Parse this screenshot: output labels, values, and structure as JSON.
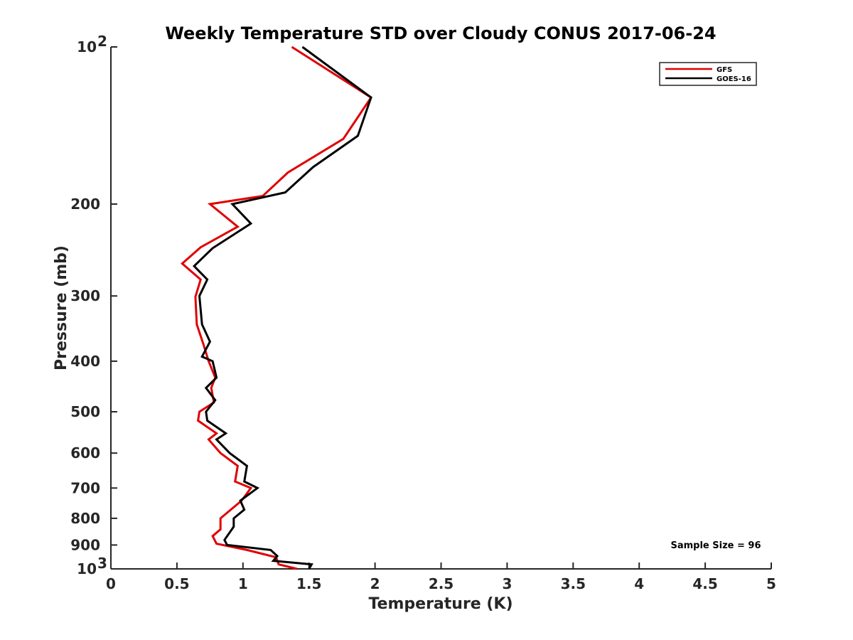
{
  "chart_data": {
    "type": "line",
    "title": "Weekly Temperature STD over Cloudy CONUS 2017-06-24",
    "xlabel": "Temperature (K)",
    "ylabel": "Pressure (mb)",
    "xlim": [
      0,
      5
    ],
    "ylim": [
      100,
      1000
    ],
    "y_scale": "log",
    "y_reversed": true,
    "grid": false,
    "legend_position": "top-right",
    "x_ticks": [
      {
        "value": 0,
        "label": "0"
      },
      {
        "value": 0.5,
        "label": "0.5"
      },
      {
        "value": 1,
        "label": "1"
      },
      {
        "value": 1.5,
        "label": "1.5"
      },
      {
        "value": 2,
        "label": "2"
      },
      {
        "value": 2.5,
        "label": "2.5"
      },
      {
        "value": 3,
        "label": "3"
      },
      {
        "value": 3.5,
        "label": "3.5"
      },
      {
        "value": 4,
        "label": "4"
      },
      {
        "value": 4.5,
        "label": "4.5"
      },
      {
        "value": 5,
        "label": "5"
      }
    ],
    "y_ticks": [
      {
        "value": 100,
        "label": "10",
        "exp": "2"
      },
      {
        "value": 200,
        "label": "200",
        "exp": ""
      },
      {
        "value": 300,
        "label": "300",
        "exp": ""
      },
      {
        "value": 400,
        "label": "400",
        "exp": ""
      },
      {
        "value": 500,
        "label": "500",
        "exp": ""
      },
      {
        "value": 600,
        "label": "600",
        "exp": ""
      },
      {
        "value": 700,
        "label": "700",
        "exp": ""
      },
      {
        "value": 800,
        "label": "800",
        "exp": ""
      },
      {
        "value": 900,
        "label": "900",
        "exp": ""
      },
      {
        "value": 1000,
        "label": "10",
        "exp": "3"
      }
    ],
    "annotation": "Sample Size = 96",
    "series": [
      {
        "name": "GFS",
        "color": "#e00000",
        "points": [
          [
            1.37,
            100
          ],
          [
            1.97,
            125
          ],
          [
            1.76,
            150
          ],
          [
            1.34,
            174
          ],
          [
            1.15,
            193
          ],
          [
            0.75,
            200
          ],
          [
            0.96,
            221
          ],
          [
            0.68,
            242
          ],
          [
            0.54,
            260
          ],
          [
            0.68,
            279
          ],
          [
            0.64,
            301
          ],
          [
            0.65,
            340
          ],
          [
            0.7,
            371
          ],
          [
            0.74,
            400
          ],
          [
            0.79,
            430
          ],
          [
            0.76,
            450
          ],
          [
            0.78,
            480
          ],
          [
            0.67,
            500
          ],
          [
            0.66,
            520
          ],
          [
            0.8,
            550
          ],
          [
            0.74,
            565
          ],
          [
            0.83,
            600
          ],
          [
            0.96,
            635
          ],
          [
            0.94,
            680
          ],
          [
            1.06,
            700
          ],
          [
            0.99,
            740
          ],
          [
            0.83,
            800
          ],
          [
            0.83,
            840
          ],
          [
            0.77,
            865
          ],
          [
            0.8,
            895
          ],
          [
            1.03,
            920
          ],
          [
            1.25,
            950
          ],
          [
            1.27,
            980
          ],
          [
            1.41,
            1000
          ]
        ]
      },
      {
        "name": "GOES-16",
        "color": "#000000",
        "points": [
          [
            1.45,
            100
          ],
          [
            1.97,
            125
          ],
          [
            1.87,
            148
          ],
          [
            1.53,
            170
          ],
          [
            1.32,
            190
          ],
          [
            0.92,
            200
          ],
          [
            1.06,
            218
          ],
          [
            0.77,
            243
          ],
          [
            0.63,
            263
          ],
          [
            0.73,
            279
          ],
          [
            0.67,
            300
          ],
          [
            0.69,
            340
          ],
          [
            0.75,
            367
          ],
          [
            0.69,
            392
          ],
          [
            0.77,
            400
          ],
          [
            0.8,
            430
          ],
          [
            0.72,
            450
          ],
          [
            0.79,
            475
          ],
          [
            0.72,
            500
          ],
          [
            0.73,
            520
          ],
          [
            0.87,
            550
          ],
          [
            0.8,
            565
          ],
          [
            0.9,
            600
          ],
          [
            1.03,
            635
          ],
          [
            1.01,
            680
          ],
          [
            1.11,
            700
          ],
          [
            0.98,
            740
          ],
          [
            1.01,
            770
          ],
          [
            0.93,
            800
          ],
          [
            0.93,
            830
          ],
          [
            0.86,
            880
          ],
          [
            0.88,
            900
          ],
          [
            1.21,
            920
          ],
          [
            1.26,
            945
          ],
          [
            1.23,
            965
          ],
          [
            1.52,
            980
          ],
          [
            1.5,
            1000
          ]
        ]
      }
    ]
  }
}
